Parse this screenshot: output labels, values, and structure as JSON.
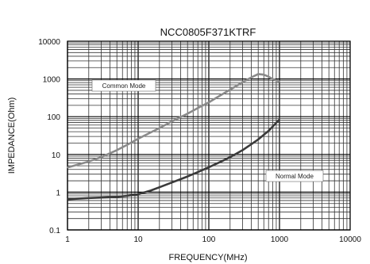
{
  "chart_data": {
    "type": "line",
    "title": "NCC0805F371KTRF",
    "xlabel": "FREQUENCY(MHz)",
    "ylabel": "IMPEDANCE(Ohm)",
    "x_scale": "log",
    "y_scale": "log",
    "xlim": [
      1,
      10000
    ],
    "ylim": [
      0.1,
      10000
    ],
    "grid": true,
    "x_ticks": [
      1,
      10,
      100,
      1000,
      10000
    ],
    "x_tick_labels": [
      "1",
      "10",
      "100",
      "1000",
      "10000"
    ],
    "y_ticks": [
      0.1,
      1,
      10,
      100,
      1000,
      10000
    ],
    "y_tick_labels": [
      "0.1",
      "1",
      "10",
      "100",
      "1000",
      "10000"
    ],
    "series": [
      {
        "name": "Common Mode",
        "color": "#8a8a8a",
        "x": [
          1,
          2,
          3,
          5,
          7,
          10,
          20,
          30,
          50,
          70,
          100,
          150,
          200,
          300,
          400,
          500,
          600,
          700,
          800,
          1000
        ],
        "y": [
          4.5,
          6.5,
          8.5,
          13,
          18,
          26,
          50,
          75,
          120,
          170,
          240,
          380,
          520,
          820,
          1100,
          1350,
          1300,
          1150,
          1000,
          850
        ]
      },
      {
        "name": "Normal Mode",
        "color": "#3a3a3a",
        "x": [
          1,
          2,
          3,
          5,
          7,
          10,
          15,
          20,
          30,
          50,
          70,
          100,
          150,
          200,
          300,
          500,
          700,
          1000
        ],
        "y": [
          0.65,
          0.7,
          0.72,
          0.75,
          0.8,
          0.88,
          1.1,
          1.35,
          1.8,
          2.6,
          3.4,
          4.6,
          6.5,
          8.5,
          13,
          25,
          42,
          85
        ]
      }
    ],
    "annotations": [
      "Common Mode",
      "Normal Mode"
    ]
  }
}
